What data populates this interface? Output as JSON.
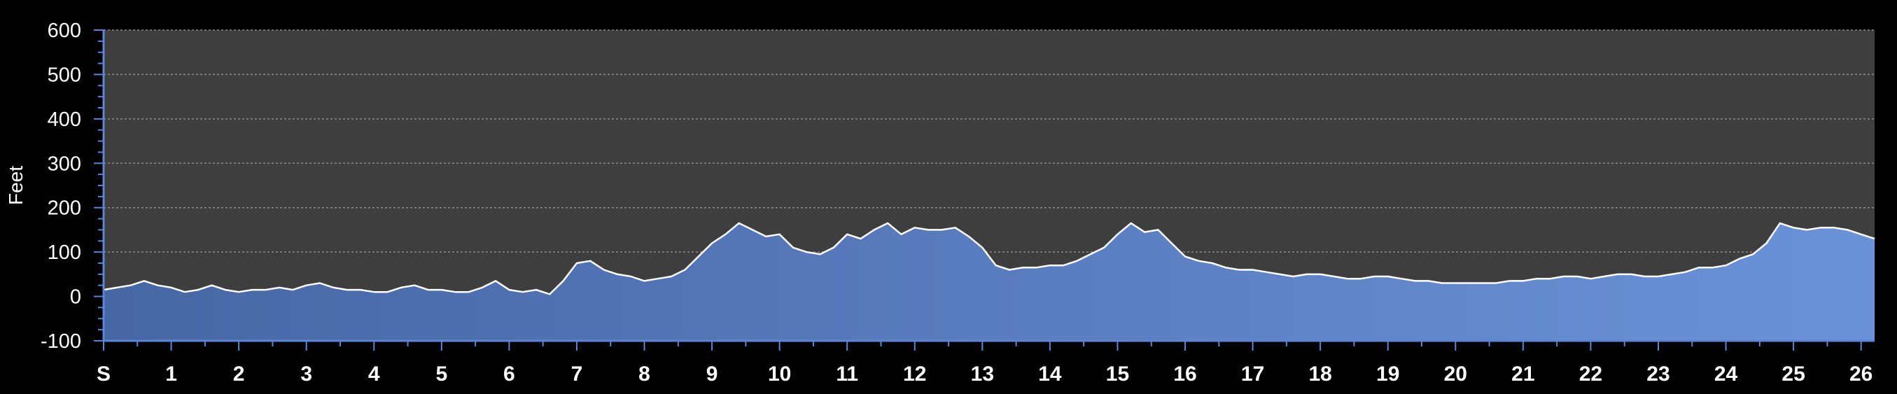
{
  "chart_data": {
    "type": "area",
    "title": "",
    "xlabel": "",
    "ylabel": "Feet",
    "x_tick_labels": [
      "S",
      "1",
      "2",
      "3",
      "4",
      "5",
      "6",
      "7",
      "8",
      "9",
      "10",
      "11",
      "12",
      "13",
      "14",
      "15",
      "16",
      "17",
      "18",
      "19",
      "20",
      "21",
      "22",
      "23",
      "24",
      "25",
      "26"
    ],
    "x_ticks": [
      0,
      1,
      2,
      3,
      4,
      5,
      6,
      7,
      8,
      9,
      10,
      11,
      12,
      13,
      14,
      15,
      16,
      17,
      18,
      19,
      20,
      21,
      22,
      23,
      24,
      25,
      26
    ],
    "y_ticks": [
      -100,
      0,
      100,
      200,
      300,
      400,
      500,
      600
    ],
    "ylim": [
      -100,
      600
    ],
    "xlim": [
      0,
      26.2
    ],
    "grid": true,
    "series": [
      {
        "x": [
          0,
          0.2,
          0.4,
          0.6,
          0.8,
          1.0,
          1.2,
          1.4,
          1.6,
          1.8,
          2.0,
          2.2,
          2.4,
          2.6,
          2.8,
          3.0,
          3.2,
          3.4,
          3.6,
          3.8,
          4.0,
          4.2,
          4.4,
          4.6,
          4.8,
          5.0,
          5.2,
          5.4,
          5.6,
          5.8,
          6.0,
          6.2,
          6.4,
          6.6,
          6.8,
          7.0,
          7.2,
          7.4,
          7.6,
          7.8,
          8.0,
          8.2,
          8.4,
          8.6,
          8.8,
          9.0,
          9.2,
          9.4,
          9.6,
          9.8,
          10.0,
          10.2,
          10.4,
          10.6,
          10.8,
          11.0,
          11.2,
          11.4,
          11.6,
          11.8,
          12.0,
          12.2,
          12.4,
          12.6,
          12.8,
          13.0,
          13.2,
          13.4,
          13.6,
          13.8,
          14.0,
          14.2,
          14.4,
          14.6,
          14.8,
          15.0,
          15.2,
          15.4,
          15.6,
          15.8,
          16.0,
          16.2,
          16.4,
          16.6,
          16.8,
          17.0,
          17.2,
          17.4,
          17.6,
          17.8,
          18.0,
          18.2,
          18.4,
          18.6,
          18.8,
          19.0,
          19.2,
          19.4,
          19.6,
          19.8,
          20.0,
          20.2,
          20.4,
          20.6,
          20.8,
          21.0,
          21.2,
          21.4,
          21.6,
          21.8,
          22.0,
          22.2,
          22.4,
          22.6,
          22.8,
          23.0,
          23.2,
          23.4,
          23.6,
          23.8,
          24.0,
          24.2,
          24.4,
          24.6,
          24.8,
          25.0,
          25.2,
          25.4,
          25.6,
          25.8,
          26.0,
          26.2
        ],
        "values": [
          15,
          20,
          25,
          35,
          25,
          20,
          10,
          15,
          25,
          15,
          10,
          15,
          15,
          20,
          15,
          25,
          30,
          20,
          15,
          15,
          10,
          10,
          20,
          25,
          15,
          15,
          10,
          10,
          20,
          35,
          15,
          10,
          15,
          5,
          35,
          75,
          80,
          60,
          50,
          45,
          35,
          40,
          45,
          60,
          90,
          120,
          140,
          165,
          150,
          135,
          140,
          110,
          100,
          95,
          110,
          140,
          130,
          150,
          165,
          140,
          155,
          150,
          150,
          155,
          135,
          110,
          70,
          60,
          65,
          65,
          70,
          70,
          80,
          95,
          110,
          140,
          165,
          145,
          150,
          120,
          90,
          80,
          75,
          65,
          60,
          60,
          55,
          50,
          45,
          50,
          50,
          45,
          40,
          40,
          45,
          45,
          40,
          35,
          35,
          30,
          30,
          30,
          30,
          30,
          35,
          35,
          40,
          40,
          45,
          45,
          40,
          45,
          50,
          50,
          45,
          45,
          50,
          55,
          65,
          65,
          70,
          85,
          95,
          120,
          165,
          155,
          150,
          155,
          155,
          150,
          140,
          130
        ]
      }
    ],
    "colors": {
      "background": "#000000",
      "plot_background": "#3e3e3e",
      "area_fill_light": "#6b92d8",
      "area_fill_dark": "#4766a4",
      "area_line": "#ffffff",
      "axis": "#5b86d6",
      "grid": "#8c8c8c",
      "text": "#ffffff"
    }
  }
}
